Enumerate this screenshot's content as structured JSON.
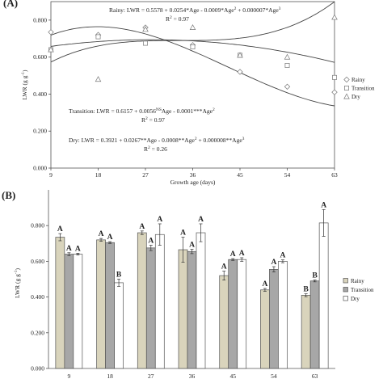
{
  "chart_data": [
    {
      "panel": "(A)",
      "type": "scatter",
      "xlabel": "Growth age (days)",
      "ylabel": "LWR (g g⁻¹)",
      "x": [
        9,
        18,
        27,
        36,
        45,
        54,
        63
      ],
      "xlim": [
        9,
        63
      ],
      "ylim": [
        0,
        0.9
      ],
      "yticks": [
        "0.000",
        "0.200",
        "0.400",
        "0.600",
        "0.800"
      ],
      "grid": false,
      "legend": "right",
      "series": [
        {
          "name": "Rainy",
          "marker": "diamond",
          "values": [
            0.735,
            0.72,
            0.76,
            0.665,
            0.52,
            0.44,
            0.41
          ],
          "coef": [
            0.5578,
            0.0254,
            -0.0009,
            7e-06
          ],
          "equation": "Rainy: LWR = 0.5578 + 0.0254*Age - 0.0009*Age² + 0.000007*Age³",
          "r2": "R² = 0.97"
        },
        {
          "name": "Transition",
          "marker": "square",
          "values": [
            0.64,
            0.71,
            0.675,
            0.655,
            0.61,
            0.555,
            0.49
          ],
          "coef": [
            0.6157,
            0.0056,
            -0.0001,
            0
          ],
          "equation": "Transition: LWR = 0.6157 + 0.0056NSAge - 0.0001***Age²",
          "r2": "R² = 0.97"
        },
        {
          "name": "Dry",
          "marker": "triangle",
          "values": [
            0.64,
            0.48,
            0.75,
            0.76,
            0.61,
            0.6,
            0.815
          ],
          "coef": [
            0.3921,
            0.0267,
            -0.0008,
            8e-06
          ],
          "equation": "Dry: LWR = 0.3921 + 0.0267**Age - 0.0008**Age² + 0.000008**Age³",
          "r2": "R² = 0.26"
        }
      ]
    },
    {
      "panel": "(B)",
      "type": "bar",
      "ylabel": "LWR (g g⁻¹)",
      "categories": [
        "9",
        "18",
        "27",
        "36",
        "45",
        "54",
        "63"
      ],
      "ylim": [
        0,
        1.0
      ],
      "yticks": [
        "0.000",
        "0.200",
        "0.400",
        "0.600",
        "0.800"
      ],
      "legend": "right",
      "series": [
        {
          "name": "Rainy",
          "color": "#d9d4bc",
          "values": [
            0.735,
            0.72,
            0.76,
            0.665,
            0.52,
            0.44,
            0.41
          ],
          "errors": [
            0.02,
            0.008,
            0.01,
            0.07,
            0.025,
            0.008,
            0.008
          ],
          "letters": [
            "A",
            "A",
            "A",
            "A",
            "A",
            "A",
            "B"
          ]
        },
        {
          "name": "Transition",
          "color": "#a7a7a7",
          "values": [
            0.64,
            0.705,
            0.675,
            0.655,
            0.61,
            0.555,
            0.49
          ],
          "errors": [
            0.008,
            0.005,
            0.015,
            0.012,
            0.005,
            0.015,
            0.005
          ],
          "letters": [
            "A",
            "A",
            "A",
            "A",
            "A",
            "A",
            "B"
          ]
        },
        {
          "name": "Dry",
          "color": "#ffffff",
          "values": [
            0.64,
            0.48,
            0.75,
            0.76,
            0.61,
            0.6,
            0.815
          ],
          "errors": [
            0.005,
            0.02,
            0.06,
            0.05,
            0.01,
            0.008,
            0.075
          ],
          "letters": [
            "A",
            "B",
            "A",
            "A",
            "A",
            "A",
            "A"
          ]
        }
      ]
    }
  ]
}
